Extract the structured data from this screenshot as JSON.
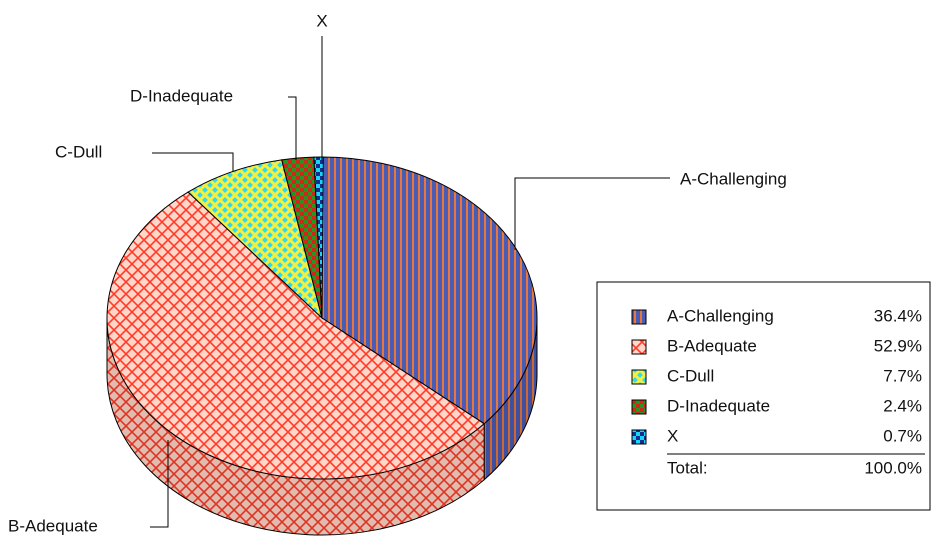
{
  "chart_data": {
    "type": "pie",
    "categories": [
      "A-Challenging",
      "B-Adequate",
      "C-Dull",
      "D-Inadequate",
      "X"
    ],
    "values": [
      36.4,
      52.9,
      7.7,
      2.4,
      0.7
    ],
    "value_labels": [
      "36.4%",
      "52.9%",
      "7.7%",
      "2.4%",
      "0.7%"
    ],
    "colors": [
      "#4a5cb4",
      "#ff3b2a",
      "#2fd9f0",
      "#1f9a1f",
      "#14d8f4"
    ],
    "total_name": "Total:",
    "total": {
      "value": 100,
      "label": "100.0%"
    },
    "legend": "right"
  }
}
